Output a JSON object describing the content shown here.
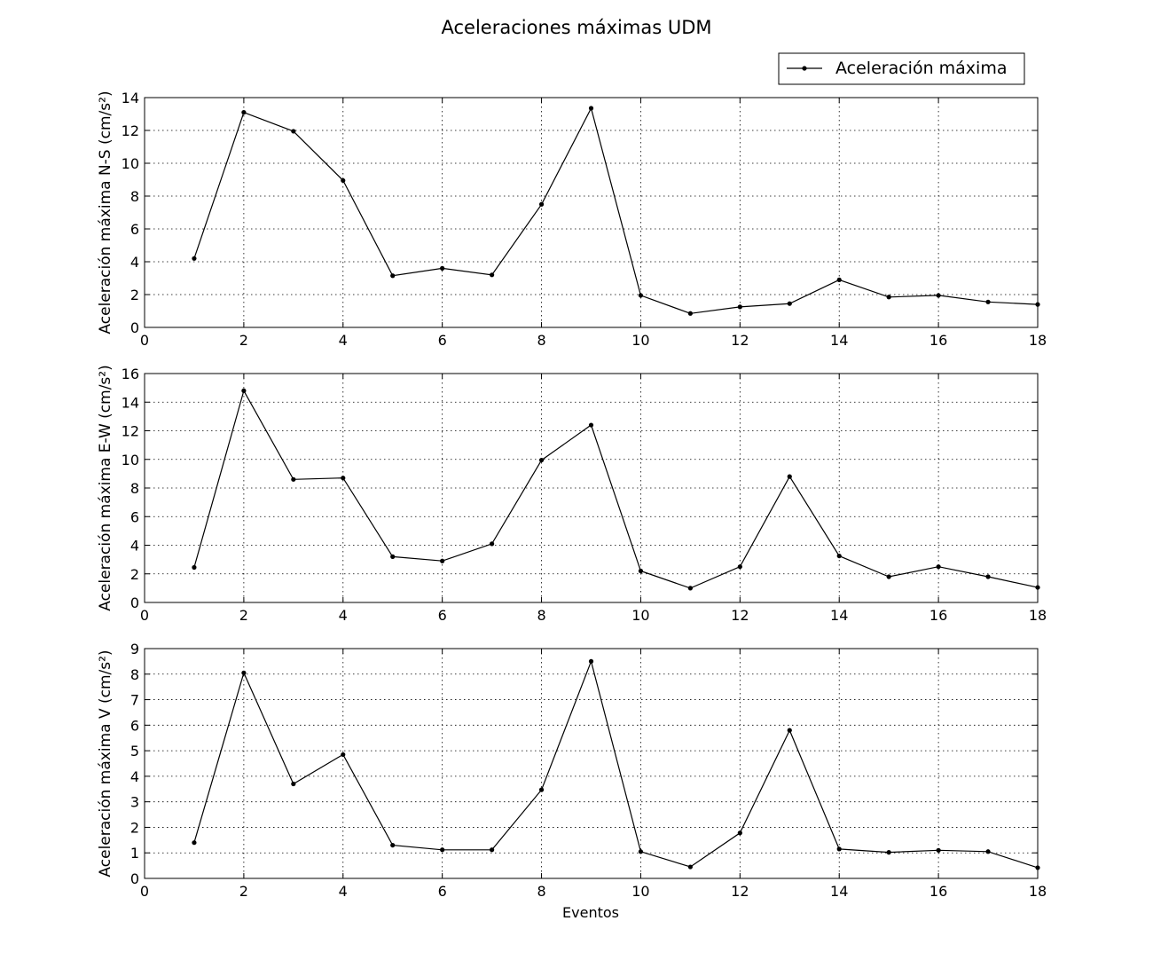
{
  "figure": {
    "title": "Aceleraciones máximas UDM",
    "legend_label": "Aceleración máxima",
    "legend_position": "top-right",
    "xlabel": "Eventos"
  },
  "chart_data": [
    {
      "type": "line",
      "ylabel": "Aceleración máxima N-S (cm/s²)",
      "xlim": [
        0,
        18
      ],
      "ylim": [
        0,
        14
      ],
      "xticks": [
        0,
        2,
        4,
        6,
        8,
        10,
        12,
        14,
        16,
        18
      ],
      "yticks": [
        0,
        2,
        4,
        6,
        8,
        10,
        12,
        14
      ],
      "grid": true,
      "color": "#000000",
      "series": [
        {
          "name": "Aceleración máxima",
          "x": [
            1,
            2,
            3,
            4,
            5,
            6,
            7,
            8,
            9,
            10,
            11,
            12,
            13,
            14,
            15,
            16,
            17,
            18
          ],
          "y": [
            4.2,
            13.1,
            11.95,
            8.95,
            3.15,
            3.6,
            3.2,
            7.5,
            13.35,
            1.95,
            0.85,
            1.25,
            1.45,
            2.9,
            1.85,
            1.95,
            1.55,
            1.4
          ]
        }
      ]
    },
    {
      "type": "line",
      "ylabel": "Aceleración máxima E-W (cm/s²)",
      "xlim": [
        0,
        18
      ],
      "ylim": [
        0,
        16
      ],
      "xticks": [
        0,
        2,
        4,
        6,
        8,
        10,
        12,
        14,
        16,
        18
      ],
      "yticks": [
        0,
        2,
        4,
        6,
        8,
        10,
        12,
        14,
        16
      ],
      "grid": true,
      "color": "#000000",
      "series": [
        {
          "name": "Aceleración máxima",
          "x": [
            1,
            2,
            3,
            4,
            5,
            6,
            7,
            8,
            9,
            10,
            11,
            12,
            13,
            14,
            15,
            16,
            17,
            18
          ],
          "y": [
            2.45,
            14.8,
            8.6,
            8.7,
            3.2,
            2.9,
            4.1,
            9.95,
            12.4,
            2.2,
            1.0,
            2.5,
            8.8,
            3.25,
            1.8,
            2.5,
            1.8,
            1.05
          ]
        }
      ]
    },
    {
      "type": "line",
      "ylabel": "Aceleración máxima V (cm/s²)",
      "xlabel": "Eventos",
      "xlim": [
        0,
        18
      ],
      "ylim": [
        0,
        9
      ],
      "xticks": [
        0,
        2,
        4,
        6,
        8,
        10,
        12,
        14,
        16,
        18
      ],
      "yticks": [
        0,
        1,
        2,
        3,
        4,
        5,
        6,
        7,
        8,
        9
      ],
      "grid": true,
      "color": "#000000",
      "series": [
        {
          "name": "Aceleración máxima",
          "x": [
            1,
            2,
            3,
            4,
            5,
            6,
            7,
            8,
            9,
            10,
            11,
            12,
            13,
            14,
            15,
            16,
            17,
            18
          ],
          "y": [
            1.4,
            8.05,
            3.7,
            4.85,
            1.3,
            1.12,
            1.12,
            3.47,
            8.5,
            1.05,
            0.45,
            1.78,
            5.8,
            1.15,
            1.02,
            1.1,
            1.05,
            0.42
          ]
        }
      ]
    }
  ]
}
